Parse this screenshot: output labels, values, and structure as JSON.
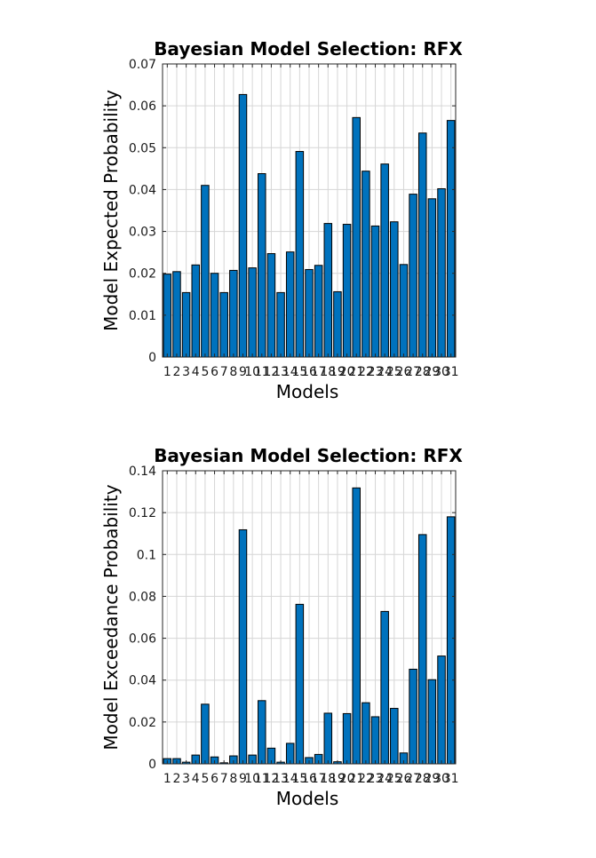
{
  "chart_data": [
    {
      "type": "bar",
      "title": "Bayesian Model Selection: RFX",
      "xlabel": "Models",
      "ylabel": "Model Expected Probability",
      "categories": [
        "1",
        "2",
        "3",
        "4",
        "5",
        "6",
        "7",
        "8",
        "9",
        "10",
        "11",
        "12",
        "13",
        "14",
        "15",
        "16",
        "17",
        "18",
        "19",
        "20",
        "21",
        "22",
        "23",
        "24",
        "25",
        "26",
        "27",
        "28",
        "29",
        "30",
        "31"
      ],
      "values": [
        0.0198,
        0.0204,
        0.0154,
        0.022,
        0.041,
        0.02,
        0.0154,
        0.0207,
        0.0627,
        0.0213,
        0.0438,
        0.0247,
        0.0154,
        0.0251,
        0.0491,
        0.0209,
        0.0219,
        0.0319,
        0.0156,
        0.0317,
        0.0572,
        0.0444,
        0.0313,
        0.0461,
        0.0323,
        0.0221,
        0.0389,
        0.0535,
        0.0378,
        0.0402,
        0.0565
      ],
      "ylim": [
        0,
        0.07
      ],
      "yticks": [
        "0",
        "0.01",
        "0.02",
        "0.03",
        "0.04",
        "0.05",
        "0.06",
        "0.07"
      ],
      "grid": true,
      "color": "#0072bd"
    },
    {
      "type": "bar",
      "title": "Bayesian Model Selection: RFX",
      "xlabel": "Models",
      "ylabel": "Model Exceedance Probability",
      "categories": [
        "1",
        "2",
        "3",
        "4",
        "5",
        "6",
        "7",
        "8",
        "9",
        "10",
        "11",
        "12",
        "13",
        "14",
        "15",
        "16",
        "17",
        "18",
        "19",
        "20",
        "21",
        "22",
        "23",
        "24",
        "25",
        "26",
        "27",
        "28",
        "29",
        "30",
        "31"
      ],
      "values": [
        0.0025,
        0.0025,
        0.0008,
        0.0042,
        0.0285,
        0.0033,
        0.0005,
        0.0038,
        0.1118,
        0.0042,
        0.0302,
        0.0075,
        0.0008,
        0.0098,
        0.0762,
        0.003,
        0.0045,
        0.0242,
        0.001,
        0.024,
        0.1318,
        0.0292,
        0.0225,
        0.0728,
        0.0265,
        0.0052,
        0.0452,
        0.1095,
        0.0402,
        0.0515,
        0.118
      ],
      "ylim": [
        0,
        0.14
      ],
      "yticks": [
        "0",
        "0.02",
        "0.04",
        "0.06",
        "0.08",
        "0.1",
        "0.12",
        "0.14"
      ],
      "grid": true,
      "color": "#0072bd"
    }
  ]
}
